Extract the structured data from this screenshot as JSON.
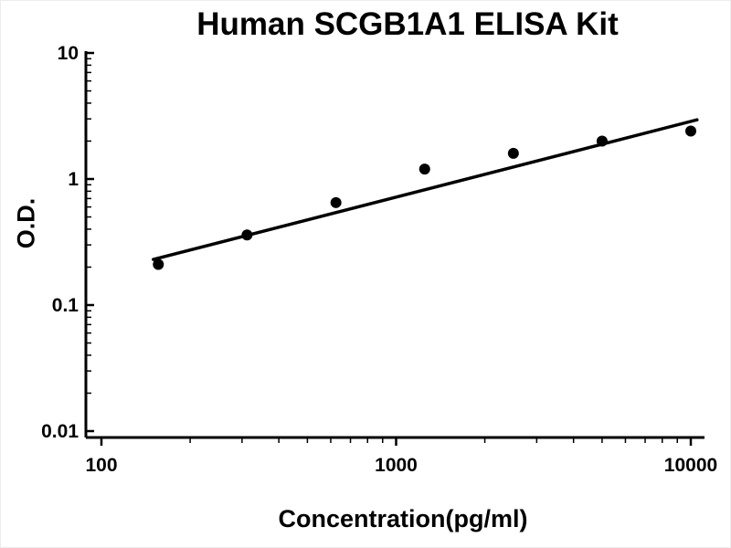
{
  "chart_data": {
    "type": "scatter",
    "title": "Human SCGB1A1 ELISA Kit",
    "xlabel": "Concentration(pg/ml)",
    "ylabel": "O.D.",
    "x_scale": "log",
    "y_scale": "log",
    "xlim": [
      100,
      10000
    ],
    "ylim": [
      0.01,
      10
    ],
    "x_ticks": [
      100,
      1000,
      10000
    ],
    "x_tick_labels": [
      "100",
      "1000",
      "10000"
    ],
    "y_ticks": [
      10,
      1,
      0.1,
      0.01
    ],
    "y_tick_labels": [
      "10",
      "1",
      "0.1",
      "0.01"
    ],
    "points": [
      {
        "x": 156,
        "y": 0.21
      },
      {
        "x": 312,
        "y": 0.36
      },
      {
        "x": 625,
        "y": 0.65
      },
      {
        "x": 1250,
        "y": 1.2
      },
      {
        "x": 2500,
        "y": 1.6
      },
      {
        "x": 5000,
        "y": 2.0
      },
      {
        "x": 10000,
        "y": 2.4
      }
    ],
    "fit_line": {
      "x1": 150,
      "y1": 0.23,
      "x2": 10500,
      "y2": 2.95
    },
    "point_color": "#000000",
    "line_color": "#000000",
    "axis_color": "#000000",
    "grid": false,
    "legend": false
  }
}
